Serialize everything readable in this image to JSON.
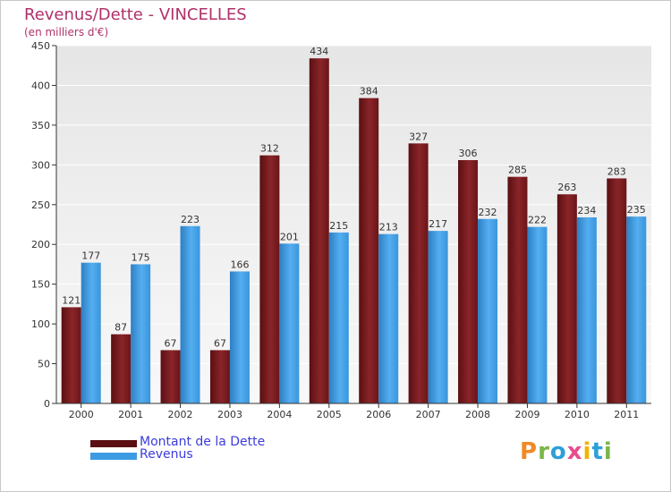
{
  "chart_data": {
    "type": "bar",
    "title": "Revenus/Dette - VINCELLES",
    "subtitle": "(en milliers d'€)",
    "xlabel": "",
    "ylabel": "",
    "ylim": [
      0,
      450
    ],
    "yticks": [
      "0",
      "50",
      "100",
      "150",
      "200",
      "250",
      "300",
      "350",
      "400",
      "450"
    ],
    "categories": [
      "2000",
      "2001",
      "2002",
      "2003",
      "2004",
      "2005",
      "2006",
      "2007",
      "2008",
      "2009",
      "2010",
      "2011"
    ],
    "series": [
      {
        "name": "Montant de la Dette",
        "color": "#7a1a1f",
        "values": [
          121,
          87,
          67,
          67,
          312,
          434,
          384,
          327,
          306,
          285,
          263,
          283
        ]
      },
      {
        "name": "Revenus",
        "color": "#3d9be3",
        "values": [
          177,
          175,
          223,
          166,
          201,
          215,
          213,
          217,
          232,
          222,
          234,
          235
        ]
      }
    ],
    "grid": true,
    "legend_position": "bottom-left"
  },
  "legend": {
    "debt_label": "Montant de la Dette",
    "revenue_label": "Revenus",
    "debt_color": "#5a0f12",
    "revenue_color": "#3d9be3"
  },
  "logo": {
    "letters": [
      "P",
      "r",
      "o",
      "x",
      "i",
      "t",
      "i"
    ],
    "colors": [
      "#f08a24",
      "#7ab648",
      "#2d9fd8",
      "#e84c8b",
      "#f0b400",
      "#2d9fd8",
      "#7ab648"
    ]
  }
}
